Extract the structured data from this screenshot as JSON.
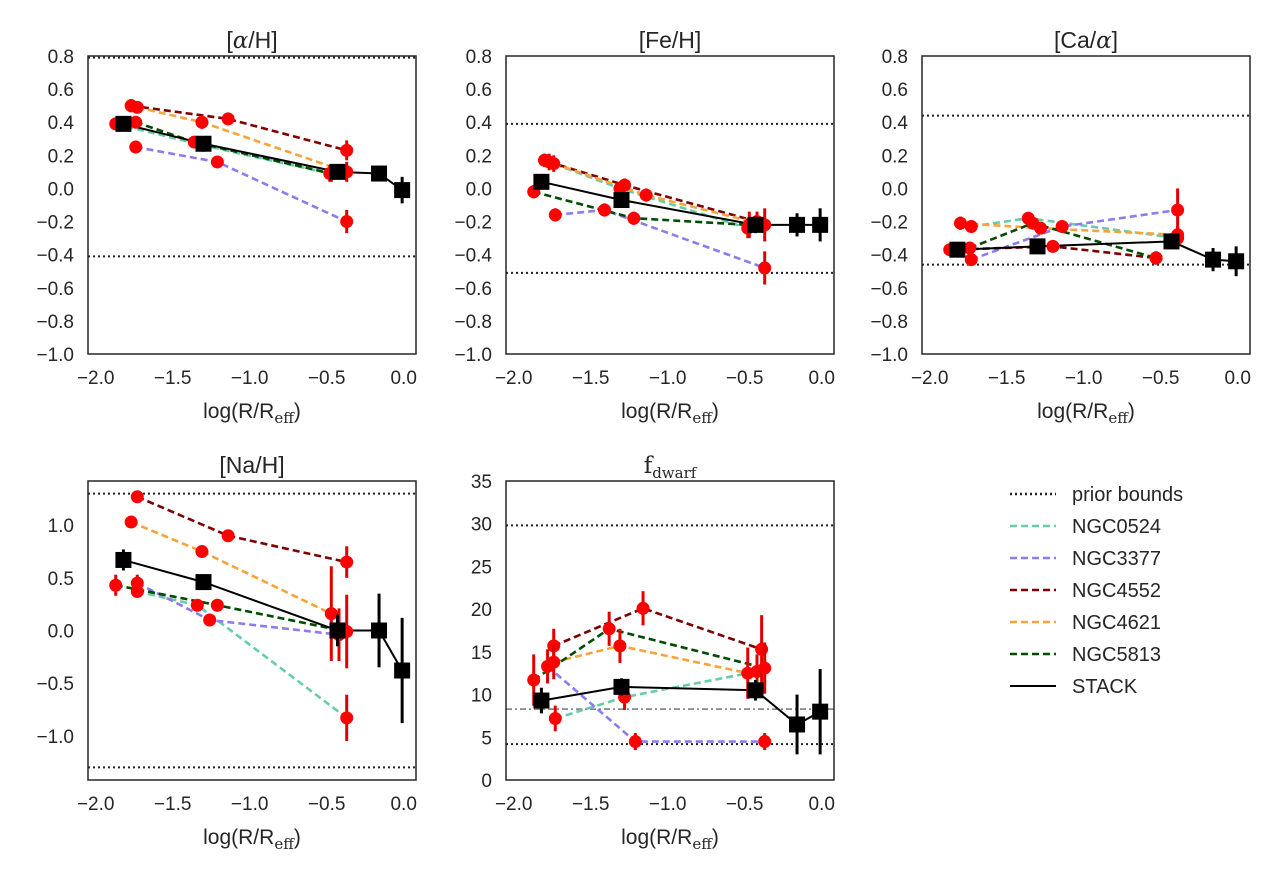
{
  "figure": {
    "legend": [
      {
        "name": "prior bounds",
        "color": "#222222",
        "style": "dotted"
      },
      {
        "name": "NGC0524",
        "color": "#66cdaa",
        "style": "dashed"
      },
      {
        "name": "NGC3377",
        "color": "#8c7cf0",
        "style": "dashed"
      },
      {
        "name": "NGC4552",
        "color": "#7f0000",
        "style": "dashed"
      },
      {
        "name": "NGC4621",
        "color": "#f9a338",
        "style": "dashed"
      },
      {
        "name": "NGC5813",
        "color": "#004d00",
        "style": "dashed"
      },
      {
        "name": "STACK",
        "color": "#000000",
        "style": "solid"
      }
    ],
    "colors": {
      "points": "#ff0000",
      "errorbars": "#e00000",
      "stack": "#000000"
    }
  },
  "chart_data": [
    {
      "type": "line",
      "id": "alpha",
      "title_parts": [
        "[",
        "α",
        "/H]"
      ],
      "xlabel": {
        "main": "log(R/R",
        "sub": "eff",
        "close": ")"
      },
      "xlim": [
        -2.05,
        0.08
      ],
      "ylim": [
        -1.0,
        0.8
      ],
      "xticks": [
        -2.0,
        -1.5,
        -1.0,
        -0.5,
        0.0
      ],
      "xticklabels": [
        "−2.0",
        "−1.5",
        "−1.0",
        "−0.5",
        "0.0"
      ],
      "yticks": [
        -1.0,
        -0.8,
        -0.6,
        -0.4,
        -0.2,
        0.0,
        0.2,
        0.4,
        0.6,
        0.8
      ],
      "yticklabels": [
        "−1.0",
        "−0.8",
        "−0.6",
        "−0.4",
        "−0.2",
        "0.0",
        "0.2",
        "0.4",
        "0.6",
        "0.8"
      ],
      "bounds": [
        0.79,
        -0.41
      ],
      "hline": null,
      "series": [
        {
          "name": "NGC0524",
          "x": [
            -1.87,
            -1.3,
            -0.48
          ],
          "y": [
            0.39,
            0.26,
            0.09
          ],
          "err": [
            0.02,
            0.02,
            0.05
          ]
        },
        {
          "name": "NGC3377",
          "x": [
            -1.74,
            -1.21,
            -0.37
          ],
          "y": [
            0.25,
            0.16,
            -0.2
          ],
          "err": [
            0.03,
            0.03,
            0.07
          ]
        },
        {
          "name": "NGC4552",
          "x": [
            -1.77,
            -1.14,
            -0.37
          ],
          "y": [
            0.5,
            0.42,
            0.23
          ],
          "err": [
            0.04,
            0.03,
            0.06
          ]
        },
        {
          "name": "NGC4621",
          "x": [
            -1.73,
            -1.31,
            -0.37
          ],
          "y": [
            0.49,
            0.4,
            0.1
          ],
          "err": [
            0.03,
            0.04,
            0.06
          ]
        },
        {
          "name": "NGC5813",
          "x": [
            -1.74,
            -1.36,
            -0.47
          ],
          "y": [
            0.4,
            0.28,
            0.09
          ],
          "err": [
            0.03,
            0.03,
            0.05
          ]
        },
        {
          "name": "STACK",
          "x": [
            -1.82,
            -1.3,
            -0.43,
            -0.16,
            -0.01
          ],
          "y": [
            0.39,
            0.27,
            0.1,
            0.09,
            -0.01
          ],
          "err": [
            0.02,
            0.02,
            0.03,
            0.03,
            0.08
          ]
        }
      ]
    },
    {
      "type": "line",
      "id": "fe",
      "title_parts": [
        "[Fe/H]"
      ],
      "xlabel": {
        "main": "log(R/R",
        "sub": "eff",
        "close": ")"
      },
      "xlim": [
        -2.05,
        0.08
      ],
      "ylim": [
        -1.0,
        0.8
      ],
      "xticks": [
        -2.0,
        -1.5,
        -1.0,
        -0.5,
        0.0
      ],
      "xticklabels": [
        "−2.0",
        "−1.5",
        "−1.0",
        "−0.5",
        "0.0"
      ],
      "yticks": [
        -1.0,
        -0.8,
        -0.6,
        -0.4,
        -0.2,
        0.0,
        0.2,
        0.4,
        0.6,
        0.8
      ],
      "yticklabels": [
        "−1.0",
        "−0.8",
        "−0.6",
        "−0.4",
        "−0.2",
        "0.0",
        "0.2",
        "0.4",
        "0.6",
        "0.8"
      ],
      "bounds": [
        0.39,
        -0.51
      ],
      "hline": null,
      "series": [
        {
          "name": "NGC0524",
          "x": [
            -1.8,
            -1.31,
            -0.48
          ],
          "y": [
            0.17,
            0.0,
            -0.24
          ],
          "err": [
            0.04,
            0.04,
            0.06
          ]
        },
        {
          "name": "NGC3377",
          "x": [
            -1.73,
            -1.41,
            -0.37
          ],
          "y": [
            -0.16,
            -0.13,
            -0.48
          ],
          "err": [
            0.04,
            0.04,
            0.1
          ]
        },
        {
          "name": "NGC4552",
          "x": [
            -1.77,
            -1.28,
            -0.42
          ],
          "y": [
            0.16,
            0.02,
            -0.2
          ],
          "err": [
            0.05,
            0.04,
            0.06
          ]
        },
        {
          "name": "NGC4621",
          "x": [
            -1.74,
            -1.14,
            -0.37
          ],
          "y": [
            0.15,
            -0.04,
            -0.22
          ],
          "err": [
            0.05,
            0.04,
            0.1
          ]
        },
        {
          "name": "NGC5813",
          "x": [
            -1.87,
            -1.22,
            -0.47
          ],
          "y": [
            -0.02,
            -0.18,
            -0.22
          ],
          "err": [
            0.04,
            0.04,
            0.08
          ]
        },
        {
          "name": "STACK",
          "x": [
            -1.82,
            -1.3,
            -0.43,
            -0.16,
            -0.01
          ],
          "y": [
            0.04,
            -0.07,
            -0.22,
            -0.22,
            -0.22
          ],
          "err": [
            0.03,
            0.04,
            0.05,
            0.07,
            0.1
          ]
        }
      ]
    },
    {
      "type": "line",
      "id": "ca",
      "title_parts": [
        "[Ca/",
        "α",
        "]"
      ],
      "xlabel": {
        "main": "log(R/R",
        "sub": "eff",
        "close": ")"
      },
      "xlim": [
        -2.05,
        0.08
      ],
      "ylim": [
        -1.0,
        0.8
      ],
      "xticks": [
        -2.0,
        -1.5,
        -1.0,
        -0.5,
        0.0
      ],
      "xticklabels": [
        "−2.0",
        "−1.5",
        "−1.0",
        "−0.5",
        "0.0"
      ],
      "yticks": [
        -1.0,
        -0.8,
        -0.6,
        -0.4,
        -0.2,
        0.0,
        0.2,
        0.4,
        0.6,
        0.8
      ],
      "yticklabels": [
        "−1.0",
        "−0.8",
        "−0.6",
        "−0.4",
        "−0.2",
        "0.0",
        "0.2",
        "0.4",
        "0.6",
        "0.8"
      ],
      "bounds": [
        0.44,
        -0.46
      ],
      "hline": null,
      "series": [
        {
          "name": "NGC0524",
          "x": [
            -1.73,
            -1.36,
            -0.39
          ],
          "y": [
            -0.23,
            -0.18,
            -0.3
          ],
          "err": [
            0.03,
            0.03,
            0.05
          ]
        },
        {
          "name": "NGC3377",
          "x": [
            -1.73,
            -1.14,
            -0.39
          ],
          "y": [
            -0.43,
            -0.23,
            -0.13
          ],
          "err": [
            0.03,
            0.03,
            0.13
          ]
        },
        {
          "name": "NGC4552",
          "x": [
            -1.87,
            -1.2,
            -0.53
          ],
          "y": [
            -0.37,
            -0.35,
            -0.42
          ],
          "err": [
            0.03,
            0.03,
            0.04
          ]
        },
        {
          "name": "NGC4621",
          "x": [
            -1.8,
            -1.28,
            -0.39
          ],
          "y": [
            -0.21,
            -0.24,
            -0.28
          ],
          "err": [
            0.04,
            0.03,
            0.05
          ]
        },
        {
          "name": "NGC5813",
          "x": [
            -1.74,
            -1.33,
            -0.53
          ],
          "y": [
            -0.36,
            -0.21,
            -0.42
          ],
          "err": [
            0.03,
            0.03,
            0.04
          ]
        },
        {
          "name": "STACK",
          "x": [
            -1.82,
            -1.3,
            -0.43,
            -0.16,
            -0.01
          ],
          "y": [
            -0.37,
            -0.35,
            -0.32,
            -0.43,
            -0.44
          ],
          "err": [
            0.03,
            0.03,
            0.03,
            0.07,
            0.09
          ]
        }
      ]
    },
    {
      "type": "line",
      "id": "na",
      "title_parts": [
        "[Na/H]"
      ],
      "xlabel": {
        "main": "log(R/R",
        "sub": "eff",
        "close": ")"
      },
      "xlim": [
        -2.05,
        0.08
      ],
      "ylim": [
        -1.42,
        1.42
      ],
      "xticks": [
        -2.0,
        -1.5,
        -1.0,
        -0.5,
        0.0
      ],
      "xticklabels": [
        "−2.0",
        "−1.5",
        "−1.0",
        "−0.5",
        "0.0"
      ],
      "yticks": [
        -1.0,
        -0.5,
        0.0,
        0.5,
        1.0
      ],
      "yticklabels": [
        "−1.0",
        "−0.5",
        "0.0",
        "0.5",
        "1.0"
      ],
      "bounds": [
        1.3,
        -1.3
      ],
      "hline": null,
      "series": [
        {
          "name": "NGC0524",
          "x": [
            -1.73,
            -1.34,
            -0.37
          ],
          "y": [
            0.37,
            0.24,
            -0.83
          ],
          "err": [
            0.05,
            0.05,
            0.22
          ]
        },
        {
          "name": "NGC3377",
          "x": [
            -1.73,
            -1.26,
            -0.42
          ],
          "y": [
            0.45,
            0.1,
            -0.04
          ],
          "err": [
            0.08,
            0.06,
            0.25
          ]
        },
        {
          "name": "NGC4552",
          "x": [
            -1.73,
            -1.14,
            -0.37
          ],
          "y": [
            1.27,
            0.9,
            0.65
          ],
          "err": [
            0.05,
            0.05,
            0.15
          ]
        },
        {
          "name": "NGC4621",
          "x": [
            -1.77,
            -1.31,
            -0.47
          ],
          "y": [
            1.03,
            0.75,
            0.16
          ],
          "err": [
            0.05,
            0.05,
            0.45
          ]
        },
        {
          "name": "NGC5813",
          "x": [
            -1.87,
            -1.21,
            -0.37
          ],
          "y": [
            0.43,
            0.24,
            -0.01
          ],
          "err": [
            0.1,
            0.06,
            0.35
          ]
        },
        {
          "name": "STACK",
          "x": [
            -1.82,
            -1.3,
            -0.43,
            -0.16,
            -0.01
          ],
          "y": [
            0.67,
            0.46,
            0.0,
            0.0,
            -0.38
          ],
          "err": [
            0.1,
            0.07,
            0.15,
            0.35,
            0.5
          ]
        }
      ]
    },
    {
      "type": "line",
      "id": "fdwarf",
      "title_parts": [
        "f",
        "dwarf"
      ],
      "xlabel": {
        "main": "log(R/R",
        "sub": "eff",
        "close": ")"
      },
      "xlim": [
        -2.05,
        0.08
      ],
      "ylim": [
        0,
        35
      ],
      "xticks": [
        -2.0,
        -1.5,
        -1.0,
        -0.5,
        0.0
      ],
      "xticklabels": [
        "−2.0",
        "−1.5",
        "−1.0",
        "−0.5",
        "0.0"
      ],
      "yticks": [
        0,
        5,
        10,
        15,
        20,
        25,
        30,
        35
      ],
      "yticklabels": [
        "0",
        "5",
        "10",
        "15",
        "20",
        "25",
        "30",
        "35"
      ],
      "bounds": [
        29.8,
        4.2
      ],
      "hline": 8.3,
      "series": [
        {
          "name": "NGC0524",
          "x": [
            -1.73,
            -1.28,
            -0.42
          ],
          "y": [
            7.2,
            9.7,
            12.7
          ],
          "err": [
            1.5,
            1.5,
            2.0
          ]
        },
        {
          "name": "NGC3377",
          "x": [
            -1.78,
            -1.21,
            -0.37
          ],
          "y": [
            13.3,
            4.5,
            4.5
          ],
          "err": [
            2.0,
            1.0,
            1.0
          ]
        },
        {
          "name": "NGC4552",
          "x": [
            -1.74,
            -1.16,
            -0.39
          ],
          "y": [
            15.7,
            20.1,
            15.3
          ],
          "err": [
            2.0,
            2.0,
            4.0
          ]
        },
        {
          "name": "NGC4621",
          "x": [
            -1.74,
            -1.31,
            -0.48
          ],
          "y": [
            13.8,
            15.7,
            12.5
          ],
          "err": [
            2.0,
            2.0,
            3.0
          ]
        },
        {
          "name": "NGC5813",
          "x": [
            -1.87,
            -1.38,
            -0.37
          ],
          "y": [
            11.7,
            17.7,
            13.1
          ],
          "err": [
            3.0,
            2.0,
            3.0
          ]
        },
        {
          "name": "STACK",
          "x": [
            -1.82,
            -1.3,
            -0.43,
            -0.16,
            -0.01
          ],
          "y": [
            9.3,
            10.9,
            10.5,
            6.5,
            8.0
          ],
          "err": [
            1.5,
            1.0,
            1.2,
            3.5,
            5.0
          ]
        }
      ]
    }
  ]
}
